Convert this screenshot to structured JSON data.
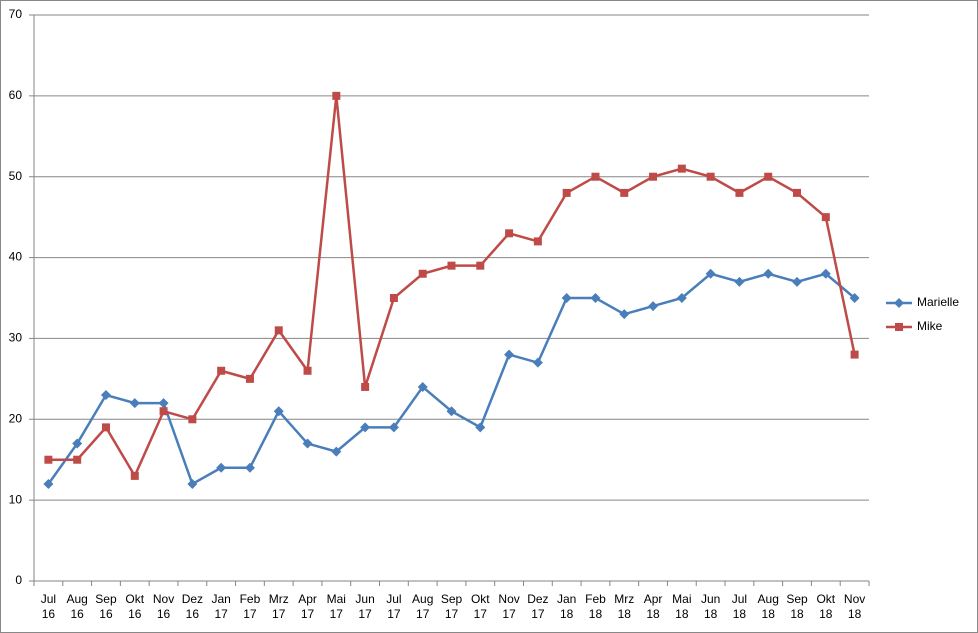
{
  "chart_data": {
    "type": "line",
    "categories": [
      "Jul 16",
      "Aug 16",
      "Sep 16",
      "Okt 16",
      "Nov 16",
      "Dez 16",
      "Jan 17",
      "Feb 17",
      "Mrz 17",
      "Apr 17",
      "Mai 17",
      "Jun 17",
      "Jul 17",
      "Aug 17",
      "Sep 17",
      "Okt 17",
      "Nov 17",
      "Dez 17",
      "Jan 18",
      "Feb 18",
      "Mrz 18",
      "Apr 18",
      "Mai 18",
      "Jun 18",
      "Jul 18",
      "Aug 18",
      "Sep 18",
      "Okt 18",
      "Nov 18"
    ],
    "series": [
      {
        "name": "Marielle",
        "color": "#4a7ebb",
        "marker": "diamond",
        "values": [
          12,
          17,
          23,
          22,
          22,
          12,
          14,
          14,
          21,
          17,
          16,
          19,
          19,
          24,
          21,
          19,
          28,
          27,
          35,
          35,
          33,
          34,
          35,
          38,
          37,
          38,
          37,
          38,
          35
        ]
      },
      {
        "name": "Mike",
        "color": "#be4b48",
        "marker": "square",
        "values": [
          15,
          15,
          19,
          13,
          21,
          20,
          26,
          25,
          31,
          26,
          60,
          24,
          35,
          38,
          39,
          39,
          43,
          42,
          48,
          50,
          48,
          50,
          51,
          50,
          48,
          50,
          48,
          45,
          28
        ]
      }
    ],
    "ylim": [
      0,
      70
    ],
    "yticks": [
      0,
      10,
      20,
      30,
      40,
      50,
      60,
      70
    ],
    "grid": true,
    "legend": "right"
  }
}
